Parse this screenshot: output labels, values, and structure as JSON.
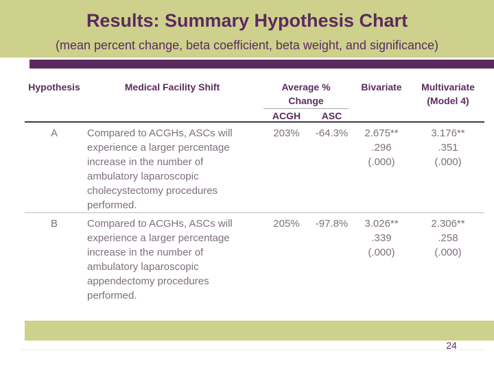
{
  "slide": {
    "title": "Results: Summary Hypothesis Chart",
    "subtitle": "(mean percent change, beta coefficient, beta weight, and significance)",
    "page_number": "24"
  },
  "colors": {
    "band_khaki": "#cdd18c",
    "accent_purple": "#5c2a5e",
    "body_text": "#7e6e7e"
  },
  "table": {
    "headers": {
      "hypothesis": "Hypothesis",
      "shift": "Medical Facility Shift",
      "avg_change": "Average %\nChange",
      "acgh": "ACGH",
      "asc": "ASC",
      "bivariate": "Bivariate",
      "multivariate": "Multivariate\n(Model 4)"
    },
    "rows": [
      {
        "label": "A",
        "shift": "Compared to ACGHs, ASCs will\nexperience a larger percentage\nincrease in the number of\nambulatory laparoscopic\ncholecystectomy procedures\nperformed.",
        "acgh": "203%",
        "asc": "-64.3%",
        "bivariate": "2.675**\n.296\n(.000)",
        "multivariate": "3.176**\n.351\n(.000)"
      },
      {
        "label": "B",
        "shift": "Compared to ACGHs, ASCs will\nexperience a larger percentage\nincrease in the number of\nambulatory laparoscopic\nappendectomy procedures\nperformed.",
        "acgh": "205%",
        "asc": "-97.8%",
        "bivariate": "3.026**\n.339\n(.000)",
        "multivariate": "2.306**\n.258\n(.000)"
      }
    ]
  }
}
